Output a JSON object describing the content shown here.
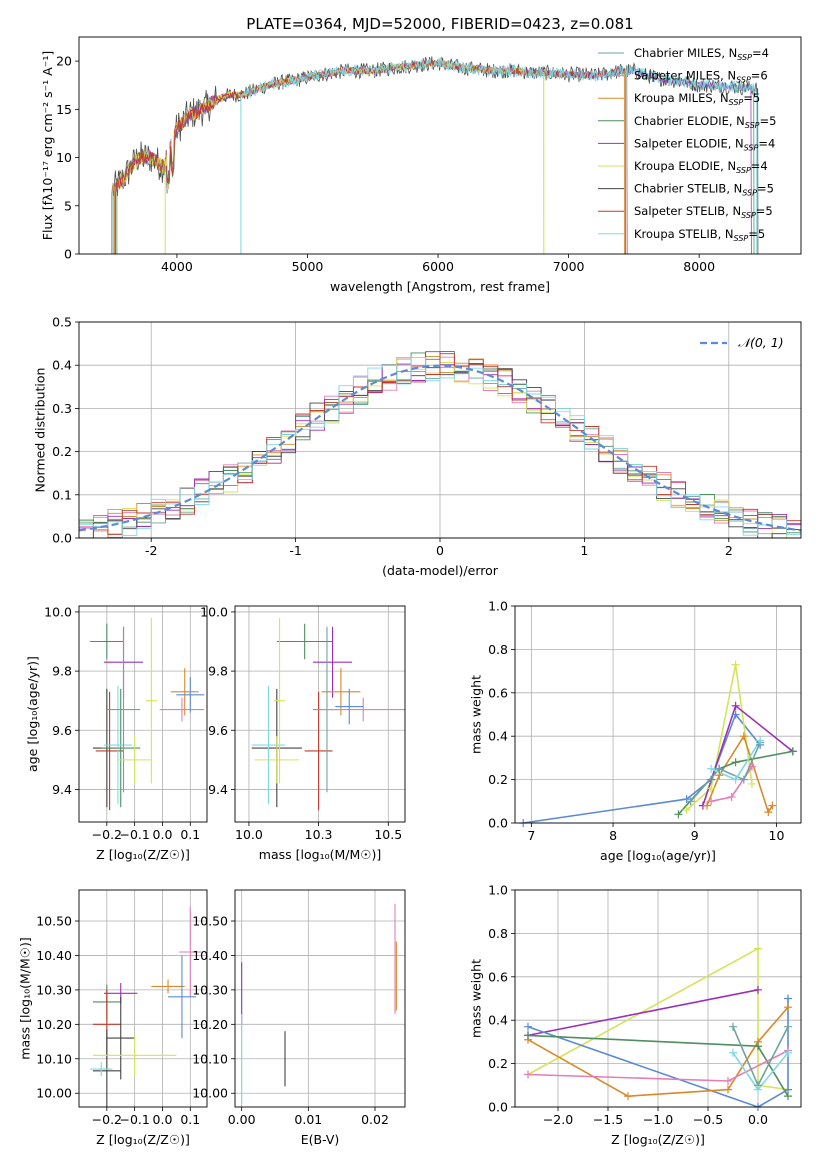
{
  "figure": {
    "title": "PLATE=0364, MJD=52000, FIBERID=0423, z=0.081"
  },
  "chart_data": [
    {
      "id": "spectrum",
      "type": "line",
      "xlabel": "wavelength [Angstrom, rest frame]",
      "ylabel": "Flux [fλ10⁻¹⁷ erg cm⁻² s⁻¹ A⁻¹]",
      "xlim": [
        3250,
        8780
      ],
      "ylim": [
        0,
        22.5
      ],
      "xticks": [
        4000,
        5000,
        6000,
        7000,
        8000
      ],
      "yticks": [
        0,
        5,
        10,
        15,
        20
      ],
      "grid": false,
      "legend_position": "top-right",
      "colors": [
        "#6fa3a0",
        "#e57db6",
        "#d98a2a",
        "#4f8f5f",
        "#9b30b8",
        "#d6e35a",
        "#444444",
        "#c0392b",
        "#7fd9e5"
      ],
      "series": [
        {
          "name": "Chabrier MILES, N",
          "sub": "SSP",
          "suffix": "=4"
        },
        {
          "name": "Salpeter MILES, N",
          "sub": "SSP",
          "suffix": "=6"
        },
        {
          "name": "Kroupa MILES, N",
          "sub": "SSP",
          "suffix": "=5"
        },
        {
          "name": "Chabrier ELODIE, N",
          "sub": "SSP",
          "suffix": "=5"
        },
        {
          "name": "Salpeter ELODIE, N",
          "sub": "SSP",
          "suffix": "=4"
        },
        {
          "name": "Kroupa ELODIE, N",
          "sub": "SSP",
          "suffix": "=4"
        },
        {
          "name": "Chabrier STELIB, N",
          "sub": "SSP",
          "suffix": "=5"
        },
        {
          "name": "Salpeter STELIB, N",
          "sub": "SSP",
          "suffix": "=5"
        },
        {
          "name": "Kroupa STELIB, N",
          "sub": "SSP",
          "suffix": "=5"
        }
      ],
      "continuum": {
        "wavelength": [
          3500,
          3600,
          3700,
          3800,
          3900,
          4000,
          4100,
          4200,
          4300,
          4400,
          4500,
          4600,
          4700,
          4800,
          4900,
          5000,
          5100,
          5200,
          5300,
          5400,
          5500,
          5600,
          5700,
          5800,
          5900,
          6000,
          6100,
          6200,
          6300,
          6400,
          6500,
          6600,
          6700,
          6800,
          6900,
          7000,
          7100,
          7200,
          7300,
          7400,
          7500,
          7600,
          7700,
          7800,
          7900,
          8000,
          8100,
          8200,
          8300,
          8400,
          8500
        ],
        "flux": [
          6.5,
          8.0,
          10.0,
          10.0,
          9.0,
          13.0,
          14.5,
          15.0,
          16.0,
          16.5,
          16.5,
          17.0,
          17.5,
          17.8,
          18.0,
          18.3,
          18.6,
          18.8,
          19.0,
          19.0,
          19.0,
          19.2,
          19.4,
          19.5,
          19.7,
          19.8,
          19.5,
          19.3,
          19.2,
          19.0,
          19.0,
          19.0,
          18.8,
          18.8,
          18.7,
          18.6,
          18.6,
          18.5,
          18.7,
          19.0,
          19.0,
          18.5,
          18.2,
          18.0,
          17.8,
          17.5,
          17.5,
          17.4,
          17.3,
          17.2,
          17.0
        ]
      },
      "model_edges": [
        [
          3510,
          7450
        ],
        [
          3520,
          7440
        ],
        [
          3500,
          7430
        ],
        [
          3540,
          8420
        ],
        [
          3530,
          8400
        ],
        [
          3520,
          6810
        ],
        [
          3510,
          8450
        ],
        [
          3525,
          7435
        ],
        [
          4490,
          8440
        ]
      ]
    },
    {
      "id": "residuals",
      "type": "histogram",
      "xlabel": "(data-model)/error",
      "ylabel": "Normed distribution",
      "xlim": [
        -2.5,
        2.5
      ],
      "ylim": [
        0,
        0.5
      ],
      "xticks": [
        -2,
        -1,
        0,
        1,
        2
      ],
      "yticks": [
        0.0,
        0.1,
        0.2,
        0.3,
        0.4,
        0.5
      ],
      "grid": true,
      "legend_position": "top-right",
      "legend": "𝒩(0, 1)",
      "normal_curve": {
        "mean": 0,
        "std": 1,
        "color": "#5b8bd6"
      },
      "bin_width": 0.1
    },
    {
      "id": "age-vs-metallicity",
      "type": "scatter",
      "xlabel": "Z [log₁₀(Z/Z☉)]",
      "ylabel": "age  [log₁₀(age/yr)]",
      "xlim": [
        -0.3,
        0.16
      ],
      "ylim": [
        9.29,
        10.02
      ],
      "xticks": [
        -0.2,
        -0.1,
        0.0,
        0.1
      ],
      "yticks": [
        9.4,
        9.6,
        9.8,
        10.0
      ],
      "grid": true,
      "points": [
        {
          "x": -0.2,
          "y": 9.9,
          "xerr": 0.06,
          "yerr": 0.06,
          "color": "#4f8f5f"
        },
        {
          "x": -0.14,
          "y": 9.83,
          "xerr": 0.07,
          "yerr": 0.12,
          "color": "#9b30b8"
        },
        {
          "x": -0.2,
          "y": 9.54,
          "xerr": 0.05,
          "yerr": 0.2,
          "color": "#444444"
        },
        {
          "x": -0.19,
          "y": 9.53,
          "xerr": 0.05,
          "yerr": 0.2,
          "color": "#c0392b"
        },
        {
          "x": -0.15,
          "y": 9.54,
          "xerr": 0.07,
          "yerr": 0.2,
          "color": "#4f8f5f"
        },
        {
          "x": -0.16,
          "y": 9.55,
          "xerr": 0.05,
          "yerr": 0.2,
          "color": "#7fd9e5"
        },
        {
          "x": -0.14,
          "y": 9.67,
          "xerr": 0.06,
          "yerr": 0.28,
          "color": "#6fa3a0"
        },
        {
          "x": -0.1,
          "y": 9.5,
          "xerr": 0.06,
          "yerr": 0.08,
          "color": "#d6e35a"
        },
        {
          "x": -0.04,
          "y": 9.7,
          "xerr": 0.02,
          "yerr": 0.28,
          "color": "#d6e35a"
        },
        {
          "x": 0.08,
          "y": 9.73,
          "xerr": 0.05,
          "yerr": 0.08,
          "color": "#d98a2a"
        },
        {
          "x": 0.07,
          "y": 9.67,
          "xerr": 0.08,
          "yerr": 0.04,
          "color": "#e57db6"
        },
        {
          "x": 0.1,
          "y": 9.72,
          "xerr": 0.05,
          "yerr": 0.06,
          "color": "#5b8bd6"
        }
      ]
    },
    {
      "id": "age-vs-mass",
      "type": "scatter",
      "xlabel": "mass [log₁₀(M/M☉)]",
      "ylabel": "",
      "xlim": [
        9.95,
        10.56
      ],
      "ylim": [
        9.29,
        10.02
      ],
      "xticks": [
        10.0,
        10.25,
        10.5
      ],
      "yticks": [
        9.4,
        9.6,
        9.8,
        10.0
      ],
      "grid": true,
      "points": [
        {
          "x": 10.2,
          "y": 9.9,
          "xerr": 0.1,
          "yerr": 0.06,
          "color": "#4f8f5f"
        },
        {
          "x": 10.3,
          "y": 9.83,
          "xerr": 0.07,
          "yerr": 0.12,
          "color": "#9b30b8"
        },
        {
          "x": 10.1,
          "y": 9.54,
          "xerr": 0.09,
          "yerr": 0.2,
          "color": "#444444"
        },
        {
          "x": 10.25,
          "y": 9.53,
          "xerr": 0.05,
          "yerr": 0.2,
          "color": "#c0392b"
        },
        {
          "x": 10.07,
          "y": 9.55,
          "xerr": 0.06,
          "yerr": 0.2,
          "color": "#7fd9e5"
        },
        {
          "x": 10.28,
          "y": 9.67,
          "xerr": 0.05,
          "yerr": 0.28,
          "color": "#6fa3a0"
        },
        {
          "x": 10.1,
          "y": 9.5,
          "xerr": 0.08,
          "yerr": 0.08,
          "color": "#d6e35a"
        },
        {
          "x": 10.11,
          "y": 9.7,
          "xerr": 0.02,
          "yerr": 0.28,
          "color": "#d6e35a"
        },
        {
          "x": 10.33,
          "y": 9.73,
          "xerr": 0.07,
          "yerr": 0.08,
          "color": "#d98a2a"
        },
        {
          "x": 10.41,
          "y": 9.67,
          "xerr": 0.15,
          "yerr": 0.04,
          "color": "#e57db6"
        },
        {
          "x": 10.36,
          "y": 9.68,
          "xerr": 0.05,
          "yerr": 0.06,
          "color": "#5b8bd6"
        }
      ]
    },
    {
      "id": "weight-vs-age",
      "type": "line",
      "xlabel": "age  [log₁₀(age/yr)]",
      "ylabel": "mass weight",
      "xlim": [
        6.8,
        10.3
      ],
      "ylim": [
        0,
        1.0
      ],
      "xticks": [
        7,
        8,
        9,
        10
      ],
      "yticks": [
        0.0,
        0.2,
        0.4,
        0.6,
        0.8,
        1.0
      ],
      "grid": true,
      "series": [
        {
          "color": "#5b8bd6",
          "x": [
            6.9,
            8.9,
            9.2,
            9.5,
            9.8
          ],
          "y": [
            0.0,
            0.11,
            0.2,
            0.5,
            0.36
          ]
        },
        {
          "color": "#d6e35a",
          "x": [
            8.9,
            9.2,
            9.5,
            9.7
          ],
          "y": [
            0.06,
            0.16,
            0.73,
            0.18
          ]
        },
        {
          "color": "#9b30b8",
          "x": [
            9.1,
            9.5,
            10.2
          ],
          "y": [
            0.08,
            0.54,
            0.33
          ]
        },
        {
          "color": "#d98a2a",
          "x": [
            9.15,
            9.3,
            9.6,
            9.9,
            9.95
          ],
          "y": [
            0.08,
            0.22,
            0.4,
            0.05,
            0.08
          ]
        },
        {
          "color": "#e57db6",
          "x": [
            9.2,
            9.45,
            9.7
          ],
          "y": [
            0.1,
            0.12,
            0.26
          ]
        },
        {
          "color": "#4f8f5f",
          "x": [
            8.8,
            9.3,
            9.5,
            10.2
          ],
          "y": [
            0.04,
            0.25,
            0.28,
            0.33
          ]
        },
        {
          "color": "#6fa3a0",
          "x": [
            8.95,
            9.3,
            9.6,
            9.8
          ],
          "y": [
            0.1,
            0.25,
            0.2,
            0.37
          ]
        },
        {
          "color": "#7fd9e5",
          "x": [
            9.2,
            9.5,
            9.8
          ],
          "y": [
            0.25,
            0.2,
            0.38
          ]
        }
      ]
    },
    {
      "id": "mass-vs-metallicity",
      "type": "scatter",
      "xlabel": "Z [log₁₀(Z/Z☉)]",
      "ylabel": "mass [log₁₀(M/M☉)]",
      "xlim": [
        -0.3,
        0.16
      ],
      "ylim": [
        9.96,
        10.59
      ],
      "xticks": [
        -0.2,
        -0.1,
        0.0,
        0.1
      ],
      "yticks": [
        10.0,
        10.1,
        10.2,
        10.3,
        10.4,
        10.5
      ],
      "grid": true,
      "points": [
        {
          "x": -0.15,
          "y": 10.29,
          "xerr": 0.06,
          "yerr": 0.03,
          "color": "#9b30b8"
        },
        {
          "x": -0.2,
          "y": 10.265,
          "xerr": 0.05,
          "yerr": 0.05,
          "color": "#4f8f5f"
        },
        {
          "x": -0.2,
          "y": 10.2,
          "xerr": 0.05,
          "yerr": 0.1,
          "color": "#c0392b"
        },
        {
          "x": -0.15,
          "y": 10.16,
          "xerr": 0.05,
          "yerr": 0.12,
          "color": "#444444"
        },
        {
          "x": -0.2,
          "y": 10.065,
          "xerr": 0.05,
          "yerr": 0.12,
          "color": "#444444"
        },
        {
          "x": -0.22,
          "y": 10.07,
          "xerr": 0.04,
          "yerr": 0.02,
          "color": "#7fd9e5"
        },
        {
          "x": -0.1,
          "y": 10.11,
          "xerr": 0.15,
          "yerr": 0.06,
          "color": "#d6e35a"
        },
        {
          "x": 0.02,
          "y": 10.31,
          "xerr": 0.06,
          "yerr": 0.02,
          "color": "#d98a2a"
        },
        {
          "x": 0.1,
          "y": 10.41,
          "xerr": 0.04,
          "yerr": 0.13,
          "color": "#e57db6"
        },
        {
          "x": 0.07,
          "y": 10.28,
          "xerr": 0.05,
          "yerr": 0.12,
          "color": "#5b8bd6"
        }
      ]
    },
    {
      "id": "mass-vs-ebv",
      "type": "scatter",
      "xlabel": "E(B-V)",
      "ylabel": "",
      "xlim": [
        -0.001,
        0.0245
      ],
      "ylim": [
        9.96,
        10.59
      ],
      "xticks": [
        0.0,
        0.01,
        0.02
      ],
      "yticks": [
        10.0,
        10.1,
        10.2,
        10.3,
        10.4,
        10.5
      ],
      "grid": true,
      "points": [
        {
          "x": 0.0,
          "y": 10.29,
          "xerr": 0,
          "yerr": 0.09,
          "color": "#9b30b8"
        },
        {
          "x": 0.0,
          "y": 10.1,
          "xerr": 0,
          "yerr": 0.13,
          "color": "#7fd9e5"
        },
        {
          "x": 0.0065,
          "y": 10.1,
          "xerr": 0,
          "yerr": 0.08,
          "color": "#444444"
        },
        {
          "x": 0.023,
          "y": 10.39,
          "xerr": 0,
          "yerr": 0.16,
          "color": "#e57db6"
        },
        {
          "x": 0.0232,
          "y": 10.34,
          "xerr": 0,
          "yerr": 0.1,
          "color": "#d98a2a"
        }
      ]
    },
    {
      "id": "weight-vs-metallicity",
      "type": "line",
      "xlabel": "Z [log₁₀(Z/Z☉)]",
      "ylabel": "mass weight",
      "xlim": [
        -2.43,
        0.43
      ],
      "ylim": [
        0,
        1.0
      ],
      "xticks": [
        -2.0,
        -1.5,
        -1.0,
        -0.5,
        0.0
      ],
      "yticks": [
        0.0,
        0.2,
        0.4,
        0.6,
        0.8,
        1.0
      ],
      "grid": true,
      "series": [
        {
          "color": "#d6e35a",
          "x": [
            -2.3,
            0.0,
            0.0,
            0.3
          ],
          "y": [
            0.15,
            0.73,
            0.1,
            0.08
          ]
        },
        {
          "color": "#9b30b8",
          "x": [
            -2.3,
            0.0
          ],
          "y": [
            0.33,
            0.54
          ]
        },
        {
          "color": "#5b8bd6",
          "x": [
            -2.3,
            0.0,
            0.3,
            0.3
          ],
          "y": [
            0.37,
            0.0,
            0.08,
            0.5
          ]
        },
        {
          "color": "#d98a2a",
          "x": [
            -2.3,
            -1.3,
            -0.3,
            0.0,
            0.3
          ],
          "y": [
            0.31,
            0.05,
            0.08,
            0.3,
            0.46
          ]
        },
        {
          "color": "#4f8f5f",
          "x": [
            -2.3,
            0.0,
            0.3
          ],
          "y": [
            0.33,
            0.28,
            0.05
          ]
        },
        {
          "color": "#e57db6",
          "x": [
            -2.3,
            -0.3,
            0.3
          ],
          "y": [
            0.15,
            0.12,
            0.26
          ]
        },
        {
          "color": "#6fa3a0",
          "x": [
            -0.25,
            0.0,
            0.3
          ],
          "y": [
            0.37,
            0.1,
            0.37
          ]
        },
        {
          "color": "#7fd9e5",
          "x": [
            -0.25,
            0.0,
            0.3
          ],
          "y": [
            0.25,
            0.08,
            0.25
          ]
        }
      ]
    }
  ]
}
